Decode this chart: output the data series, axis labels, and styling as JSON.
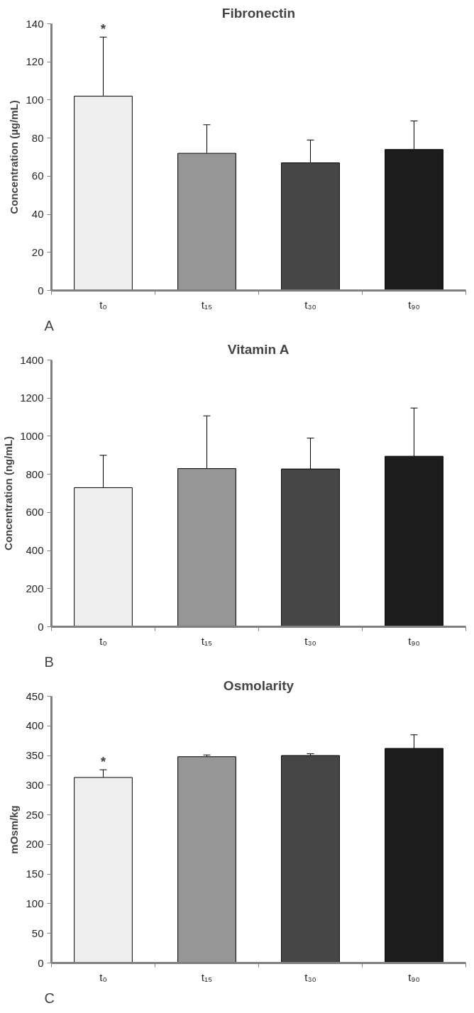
{
  "chart_data": [
    {
      "type": "bar",
      "title": "Fibronectin",
      "ylabel": "Concentration (µg/mL)",
      "categories": [
        "t₀",
        "t₁₅",
        "t₃₀",
        "t₉₀"
      ],
      "values": [
        102,
        72,
        67,
        74
      ],
      "colors": [
        "#eeeeee",
        "#969696",
        "#464646",
        "#1c1c1c"
      ],
      "errors": [
        [
          102,
          133
        ],
        [
          72,
          87
        ],
        [
          67,
          79
        ],
        [
          74,
          89
        ]
      ],
      "ylim": [
        0,
        140
      ],
      "yticks": [
        0,
        20,
        40,
        60,
        80,
        100,
        120,
        140
      ],
      "grid": false,
      "annotations": [
        {
          "text": "*",
          "x": "t₀",
          "y": 133
        },
        "A"
      ]
    },
    {
      "type": "bar",
      "title": "Vitamin A",
      "ylabel": "Concentration (ng/mL)",
      "categories": [
        "t₀",
        "t₁₅",
        "t₃₀",
        "t₉₀"
      ],
      "values": [
        730,
        830,
        828,
        895
      ],
      "colors": [
        "#eeeeee",
        "#969696",
        "#464646",
        "#1c1c1c"
      ],
      "errors": [
        [
          730,
          900
        ],
        [
          830,
          1107
        ],
        [
          828,
          990
        ],
        [
          895,
          1148
        ]
      ],
      "ylim": [
        0,
        1400
      ],
      "yticks": [
        0,
        200,
        400,
        600,
        800,
        1000,
        1200,
        1400
      ],
      "grid": false,
      "annotations": [
        "B"
      ]
    },
    {
      "type": "bar",
      "title": "Osmolarity",
      "ylabel": "mOsm/kg",
      "categories": [
        "t₀",
        "t₁₅",
        "t₃₀",
        "t₉₀"
      ],
      "values": [
        313,
        348,
        350,
        362
      ],
      "colors": [
        "#eeeeee",
        "#969696",
        "#464646",
        "#1c1c1c"
      ],
      "errors": [
        [
          313,
          326
        ],
        [
          348,
          351
        ],
        [
          350,
          353
        ],
        [
          362,
          385
        ]
      ],
      "ylim": [
        0,
        450
      ],
      "yticks": [
        0,
        50,
        100,
        150,
        200,
        250,
        300,
        350,
        400,
        450
      ],
      "grid": false,
      "annotations": [
        {
          "text": "*",
          "x": "t₀",
          "y": 326
        },
        "C"
      ]
    }
  ]
}
